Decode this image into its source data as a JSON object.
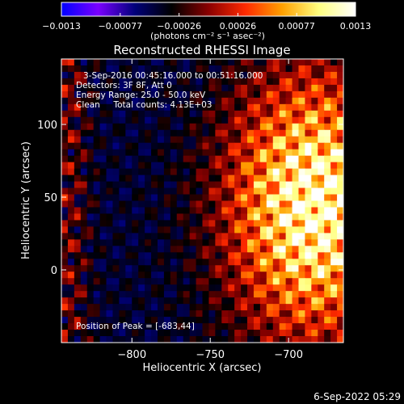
{
  "chart_data": {
    "type": "heatmap",
    "title": "Reconstructed RHESSI Image",
    "xlabel": "Heliocentric X (arcsec)",
    "ylabel": "Heliocentric Y (arcsec)",
    "xlim": [
      -845,
      -665
    ],
    "ylim": [
      -50,
      145
    ],
    "x_ticks": [
      {
        "value": -800,
        "label": "−800"
      },
      {
        "value": -750,
        "label": "−750"
      },
      {
        "value": -700,
        "label": "−700"
      }
    ],
    "y_ticks": [
      {
        "value": 0,
        "label": "0"
      },
      {
        "value": 50,
        "label": "50"
      },
      {
        "value": 100,
        "label": "100"
      }
    ],
    "colorbar": {
      "min": -0.0013,
      "max": 0.0013,
      "tick_labels": [
        "−0.0013",
        "−0.00077",
        "−0.00026",
        "0.00026",
        "0.00077",
        "0.0013"
      ],
      "units": "(photons cm⁻² s⁻¹ asec⁻²)",
      "colors": [
        "#0000ff",
        "#7a00ff",
        "#00007a",
        "#000000",
        "#8a0000",
        "#ff2a00",
        "#ffa000",
        "#ffff80",
        "#ffffff"
      ]
    },
    "annotations": [
      "3-Sep-2016 00:45:16.000 to 00:51:16.000",
      "Detectors: 3F 8F, Att 0",
      "Energy Range: 25.0 - 50.0 keV",
      "Clean     Total counts: 4.13E+03"
    ],
    "peak_label": "Position of Peak = [-683,44]",
    "peak": {
      "x": -683,
      "y": 44
    }
  },
  "timestamp": "6-Sep-2022 05:29"
}
